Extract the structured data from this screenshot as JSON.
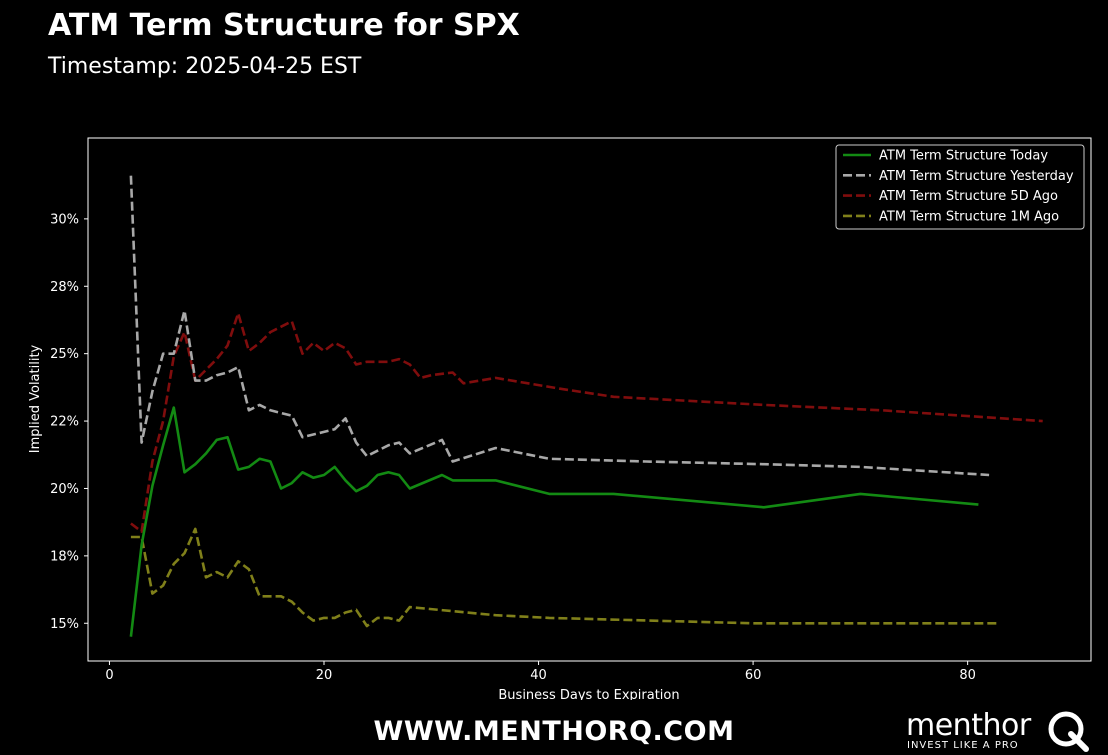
{
  "header": {
    "title": "ATM Term Structure for SPX",
    "subtitle": "Timestamp: 2025-04-25 EST"
  },
  "footer": {
    "url": "WWW.MENTHORQ.COM",
    "brand_name": "menthor",
    "brand_tagline": "INVEST LIKE A PRO",
    "brand_mark_letter": "Q"
  },
  "chart_data": {
    "type": "line",
    "xlabel": "Business Days to Expiration",
    "ylabel": "Implied Volatility",
    "xlim": [
      -2,
      91.5
    ],
    "ylim": [
      13.6,
      33.0
    ],
    "x_ticks": [
      0,
      20,
      40,
      60,
      80
    ],
    "y_ticks": [
      {
        "value": 15.0,
        "label": "15%"
      },
      {
        "value": 17.5,
        "label": "18%"
      },
      {
        "value": 20.0,
        "label": "20%"
      },
      {
        "value": 22.5,
        "label": "22%"
      },
      {
        "value": 25.0,
        "label": "25%"
      },
      {
        "value": 27.5,
        "label": "28%"
      },
      {
        "value": 30.0,
        "label": "30%"
      }
    ],
    "grid": false,
    "legend_position": "top-right",
    "series": [
      {
        "name": "ATM Term Structure Today",
        "color": "#138a13",
        "dash": "solid",
        "points": [
          [
            2,
            14.5
          ],
          [
            3,
            17.9
          ],
          [
            4,
            20.1
          ],
          [
            5,
            21.6
          ],
          [
            6,
            23.0
          ],
          [
            7,
            20.6
          ],
          [
            8,
            20.9
          ],
          [
            9,
            21.3
          ],
          [
            10,
            21.8
          ],
          [
            11,
            21.9
          ],
          [
            12,
            20.7
          ],
          [
            13,
            20.8
          ],
          [
            14,
            21.1
          ],
          [
            15,
            21.0
          ],
          [
            16,
            20.0
          ],
          [
            17,
            20.2
          ],
          [
            18,
            20.6
          ],
          [
            19,
            20.4
          ],
          [
            20,
            20.5
          ],
          [
            21,
            20.8
          ],
          [
            22,
            20.3
          ],
          [
            23,
            19.9
          ],
          [
            24,
            20.1
          ],
          [
            25,
            20.5
          ],
          [
            26,
            20.6
          ],
          [
            27,
            20.5
          ],
          [
            28,
            20.0
          ],
          [
            31,
            20.5
          ],
          [
            32,
            20.3
          ],
          [
            36,
            20.3
          ],
          [
            41,
            19.8
          ],
          [
            47,
            19.8
          ],
          [
            61,
            19.3
          ],
          [
            70,
            19.8
          ],
          [
            81,
            19.4
          ]
        ]
      },
      {
        "name": "ATM Term Structure Yesterday",
        "color": "#a8a8a8",
        "dash": "dashed",
        "points": [
          [
            2,
            31.6
          ],
          [
            3,
            21.7
          ],
          [
            4,
            23.6
          ],
          [
            5,
            25.0
          ],
          [
            6,
            25.0
          ],
          [
            7,
            26.6
          ],
          [
            8,
            24.0
          ],
          [
            9,
            24.0
          ],
          [
            10,
            24.2
          ],
          [
            11,
            24.3
          ],
          [
            12,
            24.5
          ],
          [
            13,
            22.9
          ],
          [
            14,
            23.1
          ],
          [
            15,
            22.9
          ],
          [
            16,
            22.8
          ],
          [
            17,
            22.7
          ],
          [
            18,
            21.9
          ],
          [
            19,
            22.0
          ],
          [
            20,
            22.1
          ],
          [
            21,
            22.2
          ],
          [
            22,
            22.6
          ],
          [
            23,
            21.7
          ],
          [
            24,
            21.2
          ],
          [
            25,
            21.4
          ],
          [
            26,
            21.6
          ],
          [
            27,
            21.7
          ],
          [
            28,
            21.3
          ],
          [
            31,
            21.8
          ],
          [
            32,
            21.0
          ],
          [
            36,
            21.5
          ],
          [
            41,
            21.1
          ],
          [
            50,
            21.0
          ],
          [
            61,
            20.9
          ],
          [
            70,
            20.8
          ],
          [
            82,
            20.5
          ]
        ]
      },
      {
        "name": "ATM Term Structure 5D Ago",
        "color": "#800d0d",
        "dash": "dashed",
        "points": [
          [
            2,
            18.7
          ],
          [
            3,
            18.4
          ],
          [
            4,
            21.0
          ],
          [
            5,
            22.5
          ],
          [
            6,
            24.9
          ],
          [
            7,
            25.8
          ],
          [
            8,
            24.0
          ],
          [
            9,
            24.4
          ],
          [
            10,
            24.8
          ],
          [
            11,
            25.3
          ],
          [
            12,
            26.5
          ],
          [
            13,
            25.1
          ],
          [
            14,
            25.4
          ],
          [
            15,
            25.8
          ],
          [
            16,
            26.0
          ],
          [
            17,
            26.2
          ],
          [
            18,
            25.0
          ],
          [
            19,
            25.4
          ],
          [
            20,
            25.1
          ],
          [
            21,
            25.4
          ],
          [
            22,
            25.2
          ],
          [
            23,
            24.6
          ],
          [
            24,
            24.7
          ],
          [
            25,
            24.7
          ],
          [
            26,
            24.7
          ],
          [
            27,
            24.8
          ],
          [
            28,
            24.6
          ],
          [
            29,
            24.1
          ],
          [
            30,
            24.2
          ],
          [
            32,
            24.3
          ],
          [
            33,
            23.9
          ],
          [
            36,
            24.1
          ],
          [
            42,
            23.7
          ],
          [
            47,
            23.4
          ],
          [
            61,
            23.1
          ],
          [
            72,
            22.9
          ],
          [
            87,
            22.5
          ]
        ]
      },
      {
        "name": "ATM Term Structure 1M Ago",
        "color": "#80801a",
        "dash": "dashed",
        "points": [
          [
            2,
            18.2
          ],
          [
            3,
            18.2
          ],
          [
            4,
            16.1
          ],
          [
            5,
            16.4
          ],
          [
            6,
            17.2
          ],
          [
            7,
            17.6
          ],
          [
            8,
            18.5
          ],
          [
            9,
            16.7
          ],
          [
            10,
            16.9
          ],
          [
            11,
            16.7
          ],
          [
            12,
            17.3
          ],
          [
            13,
            17.0
          ],
          [
            14,
            16.0
          ],
          [
            15,
            16.0
          ],
          [
            16,
            16.0
          ],
          [
            17,
            15.8
          ],
          [
            18,
            15.4
          ],
          [
            19,
            15.1
          ],
          [
            20,
            15.2
          ],
          [
            21,
            15.2
          ],
          [
            22,
            15.4
          ],
          [
            23,
            15.5
          ],
          [
            24,
            14.9
          ],
          [
            25,
            15.2
          ],
          [
            26,
            15.2
          ],
          [
            27,
            15.1
          ],
          [
            28,
            15.6
          ],
          [
            36,
            15.3
          ],
          [
            41,
            15.2
          ],
          [
            60,
            15.0
          ],
          [
            70,
            15.0
          ],
          [
            83,
            15.0
          ]
        ]
      }
    ]
  }
}
